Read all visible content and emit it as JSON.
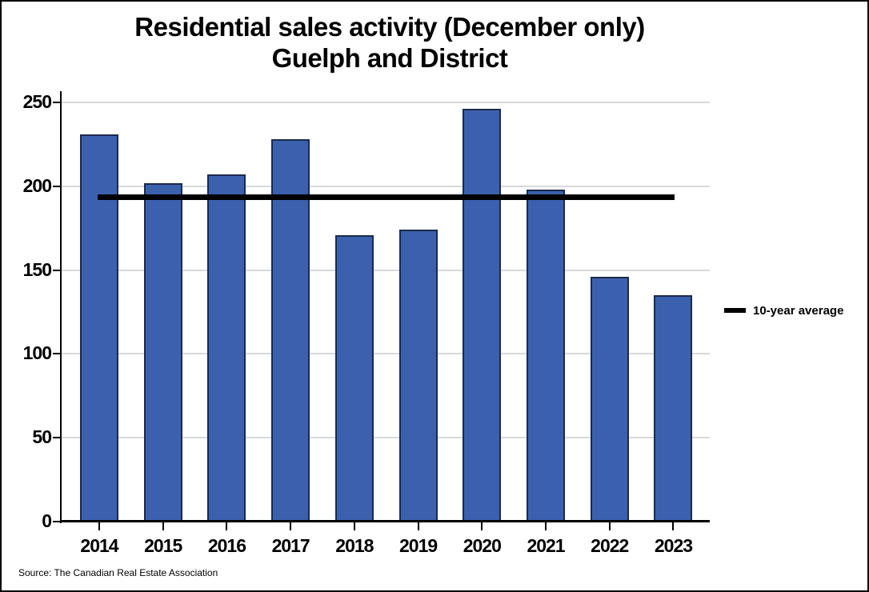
{
  "title": {
    "line1": "Residential sales activity (December only)",
    "line2": "Guelph and District"
  },
  "legend": {
    "label": "10-year average"
  },
  "source": "Source: The Canadian Real Estate Association",
  "chart_data": {
    "type": "bar",
    "title": "Residential sales activity (December only) Guelph and District",
    "categories": [
      "2014",
      "2015",
      "2016",
      "2017",
      "2018",
      "2019",
      "2020",
      "2021",
      "2022",
      "2023"
    ],
    "values": [
      231,
      202,
      207,
      228,
      171,
      174,
      246,
      198,
      146,
      135
    ],
    "average_line": {
      "label": "10-year average",
      "value": 193.8
    },
    "xlabel": "",
    "ylabel": "",
    "ylim": [
      0,
      250
    ],
    "yticks": [
      0,
      50,
      100,
      150,
      200,
      250
    ],
    "grid": true,
    "legend_position": "right",
    "colors": {
      "bar_fill": "#3b61ae",
      "bar_border": "#1b2a4a",
      "average_line": "#000000",
      "gridline": "#d9d9d9",
      "axis": "#000000",
      "text": "#000000"
    }
  }
}
